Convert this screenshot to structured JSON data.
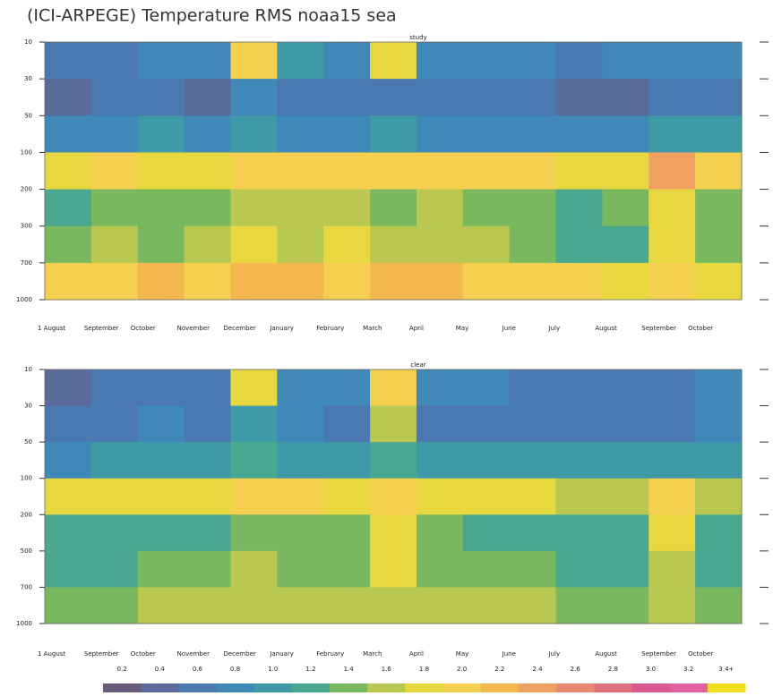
{
  "title": "(ICI-ARPEGE) Temperature RMS noaa15 sea",
  "chart_data": [
    {
      "type": "heatmap",
      "title": "study",
      "categories": [
        "1 August",
        "September",
        "October",
        "November",
        "December",
        "January",
        "February",
        "March",
        "April",
        "May",
        "June",
        "July",
        "August",
        "September",
        "October"
      ],
      "yticks": [
        10,
        30,
        50,
        100,
        200,
        300,
        700,
        1000
      ],
      "z": [
        [
          0.6,
          0.6,
          0.8,
          0.8,
          2.0,
          1.0,
          0.8,
          1.8,
          0.8,
          0.8,
          0.8,
          0.6,
          0.8,
          0.8,
          0.8
        ],
        [
          0.4,
          0.6,
          0.6,
          0.4,
          0.8,
          0.6,
          0.6,
          0.6,
          0.6,
          0.6,
          0.6,
          0.4,
          0.4,
          0.6,
          0.6
        ],
        [
          0.8,
          0.8,
          1.0,
          0.8,
          1.0,
          0.8,
          0.8,
          1.0,
          0.8,
          0.8,
          0.8,
          0.8,
          0.8,
          1.0,
          1.0
        ],
        [
          1.8,
          2.0,
          1.8,
          1.8,
          2.0,
          2.0,
          2.0,
          2.0,
          2.0,
          2.0,
          2.0,
          1.8,
          1.8,
          2.4,
          2.0
        ],
        [
          1.2,
          1.4,
          1.4,
          1.4,
          1.6,
          1.6,
          1.6,
          1.4,
          1.6,
          1.4,
          1.4,
          1.2,
          1.4,
          1.8,
          1.4
        ],
        [
          1.4,
          1.6,
          1.4,
          1.6,
          1.8,
          1.6,
          1.8,
          1.6,
          1.6,
          1.6,
          1.4,
          1.2,
          1.2,
          1.8,
          1.4
        ],
        [
          2.0,
          2.0,
          2.2,
          2.0,
          2.2,
          2.2,
          2.0,
          2.2,
          2.2,
          2.0,
          2.0,
          2.0,
          1.8,
          2.0,
          1.8
        ]
      ]
    },
    {
      "type": "heatmap",
      "title": "clear",
      "categories": [
        "1 August",
        "September",
        "October",
        "November",
        "December",
        "January",
        "February",
        "March",
        "April",
        "May",
        "June",
        "July",
        "August",
        "September",
        "October"
      ],
      "yticks": [
        10,
        30,
        50,
        100,
        200,
        500,
        700,
        1000
      ],
      "z": [
        [
          0.4,
          0.6,
          0.6,
          0.6,
          1.8,
          0.8,
          0.8,
          2.0,
          0.8,
          0.8,
          0.6,
          0.6,
          0.6,
          0.6,
          0.8
        ],
        [
          0.6,
          0.6,
          0.8,
          0.6,
          1.0,
          0.8,
          0.6,
          1.6,
          0.6,
          0.6,
          0.6,
          0.6,
          0.6,
          0.6,
          0.8
        ],
        [
          0.8,
          1.0,
          1.0,
          1.0,
          1.2,
          1.0,
          1.0,
          1.2,
          1.0,
          1.0,
          1.0,
          1.0,
          1.0,
          1.0,
          1.0
        ],
        [
          1.8,
          1.8,
          1.8,
          1.8,
          2.0,
          2.0,
          1.8,
          2.0,
          1.8,
          1.8,
          1.8,
          1.6,
          1.6,
          2.0,
          1.6
        ],
        [
          1.2,
          1.2,
          1.2,
          1.2,
          1.4,
          1.4,
          1.4,
          1.8,
          1.4,
          1.2,
          1.2,
          1.2,
          1.2,
          1.8,
          1.2
        ],
        [
          1.2,
          1.2,
          1.4,
          1.4,
          1.6,
          1.4,
          1.4,
          1.8,
          1.4,
          1.4,
          1.4,
          1.2,
          1.2,
          1.6,
          1.2
        ],
        [
          1.4,
          1.4,
          1.6,
          1.6,
          1.6,
          1.6,
          1.6,
          1.6,
          1.6,
          1.6,
          1.6,
          1.4,
          1.4,
          1.6,
          1.4
        ]
      ]
    }
  ],
  "colorbar": {
    "ticks": [
      0.2,
      0.4,
      0.6,
      0.8,
      {
        "value": 1,
        "label": "1.0"
      },
      1.2,
      1.4,
      1.6,
      1.8,
      {
        "value": 2,
        "label": "2.0"
      },
      2.2,
      2.4,
      2.6,
      2.8,
      {
        "value": 3,
        "label": "3.0"
      },
      3.2,
      {
        "value": 3.4,
        "label": "3.4+"
      }
    ],
    "colors": [
      "#6a5a7a",
      "#5a6a9a",
      "#4a78b0",
      "#3f88b8",
      "#3f9aa8",
      "#4aa890",
      "#7ab860",
      "#b8c850",
      "#e8d840",
      "#f5d050",
      "#f5b850",
      "#f0a060",
      "#e88870",
      "#e07080",
      "#d85890",
      "#e060a0",
      "#f0e020"
    ]
  }
}
